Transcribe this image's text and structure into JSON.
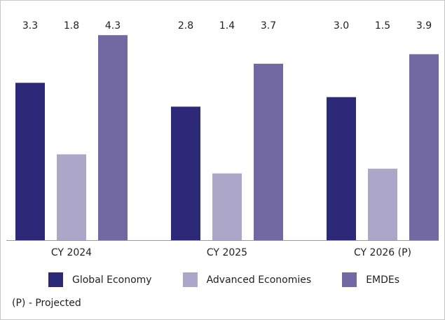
{
  "chart_data": {
    "type": "bar",
    "categories": [
      "CY 2024",
      "CY 2025",
      "CY 2026 (P)"
    ],
    "series": [
      {
        "name": "Global Economy",
        "values": [
          3.3,
          2.8,
          3.0
        ],
        "labels": [
          "3.3",
          "2.8",
          "3.0"
        ],
        "color": "#2e2878"
      },
      {
        "name": "Advanced Economies",
        "values": [
          1.8,
          1.4,
          1.5
        ],
        "labels": [
          "1.8",
          "1.4",
          "1.5"
        ],
        "color": "#aca7c9"
      },
      {
        "name": "EMDEs",
        "values": [
          4.3,
          3.7,
          3.9
        ],
        "labels": [
          "4.3",
          "3.7",
          "3.9"
        ],
        "color": "#7369a2"
      }
    ],
    "ylim": [
      0,
      4.5
    ],
    "legend_position": "bottom",
    "note": "(P) - Projected"
  }
}
